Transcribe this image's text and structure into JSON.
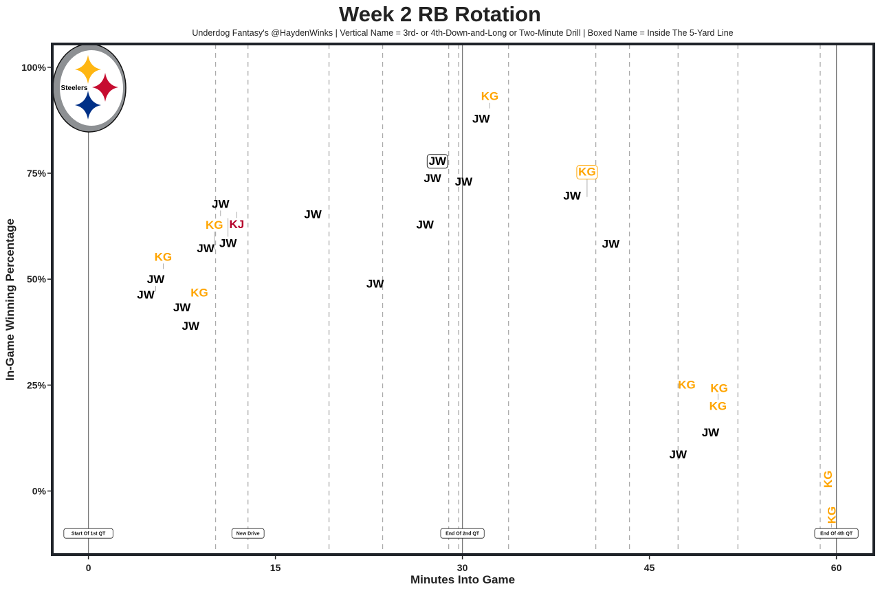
{
  "chart_data": {
    "type": "scatter",
    "title": "Week 2 RB Rotation",
    "subtitle": "Underdog Fantasy's @HaydenWinks | Vertical Name = 3rd- or 4th-Down-and-Long or Two-Minute Drill | Boxed Name = Inside The 5-Yard Line",
    "xlabel": "Minutes Into Game",
    "ylabel": "In-Game Winning Percentage",
    "xlim": [
      -2.9,
      63
    ],
    "ylim": [
      -15,
      105.5
    ],
    "xticks": [
      0,
      15,
      30,
      45,
      60
    ],
    "xtick_labels": [
      "0",
      "15",
      "30",
      "45",
      "60"
    ],
    "yticks": [
      0,
      25,
      50,
      75,
      100
    ],
    "ytick_labels": [
      "0%",
      "25%",
      "50%",
      "75%",
      "100%"
    ],
    "grid": false,
    "colors": {
      "JW": "#000000",
      "KG": "#FFA500",
      "KJ": "#B5002A",
      "frame": "#1f2329"
    },
    "points": [
      {
        "label": "JW",
        "x": 4.6,
        "y": 46.4
      },
      {
        "label": "JW",
        "x": 5.4,
        "y": 47.1
      },
      {
        "label": "KG",
        "x": 6.0,
        "y": 52.4
      },
      {
        "label": "JW",
        "x": 7.5,
        "y": 43.4
      },
      {
        "label": "KG",
        "x": 8.9,
        "y": 46.9
      },
      {
        "label": "JW",
        "x": 8.2,
        "y": 39.0
      },
      {
        "label": "JW",
        "x": 9.4,
        "y": 57.3
      },
      {
        "label": "KG",
        "x": 10.1,
        "y": 57.0
      },
      {
        "label": "JW",
        "x": 10.6,
        "y": 64.9
      },
      {
        "label": "JW",
        "x": 11.2,
        "y": 64.4
      },
      {
        "label": "KJ",
        "x": 11.9,
        "y": 65.9
      },
      {
        "label": "JW",
        "x": 18.0,
        "y": 65.4
      },
      {
        "label": "JW",
        "x": 23.0,
        "y": 49.0
      },
      {
        "label": "JW",
        "x": 27.0,
        "y": 62.9
      },
      {
        "label": "JW",
        "x": 27.6,
        "y": 73.9
      },
      {
        "label": "JW",
        "x": 28.0,
        "y": 77.8,
        "boxed": true
      },
      {
        "label": "JW",
        "x": 30.1,
        "y": 73.1
      },
      {
        "label": "JW",
        "x": 31.5,
        "y": 87.9
      },
      {
        "label": "KG",
        "x": 32.2,
        "y": 90.3
      },
      {
        "label": "JW",
        "x": 38.8,
        "y": 69.7
      },
      {
        "label": "KG",
        "x": 40.0,
        "y": 69.4,
        "boxed": true
      },
      {
        "label": "JW",
        "x": 41.9,
        "y": 58.4
      },
      {
        "label": "KG",
        "x": 48.0,
        "y": 25.1
      },
      {
        "label": "KG",
        "x": 50.6,
        "y": 24.3
      },
      {
        "label": "KG",
        "x": 50.5,
        "y": 23.0
      },
      {
        "label": "JW",
        "x": 49.9,
        "y": 13.9
      },
      {
        "label": "JW",
        "x": 47.3,
        "y": 8.7
      },
      {
        "label": "KG",
        "x": 59.3,
        "y": 2.8,
        "vertical": true
      },
      {
        "label": "KG",
        "x": 59.6,
        "y": -8.6,
        "vertical": true
      }
    ],
    "drive_lines": [
      10.2,
      12.8,
      19.3,
      23.6,
      28.9,
      29.7,
      33.7,
      40.7,
      43.4,
      47.3,
      52.1,
      58.7
    ],
    "events": [
      {
        "label": "Start Of 1st QT",
        "x": 0
      },
      {
        "label": "New Drive",
        "x": 12.8
      },
      {
        "label": "End Of 2nd QT",
        "x": 30
      },
      {
        "label": "End Of 4th QT",
        "x": 60
      }
    ],
    "event_label_y": -10,
    "quarter_lines": [
      0,
      30,
      60
    ],
    "logo": {
      "text": "Steelers",
      "colors": [
        "#FFB612",
        "#C60C30",
        "#003087",
        "#8D9093"
      ]
    }
  }
}
